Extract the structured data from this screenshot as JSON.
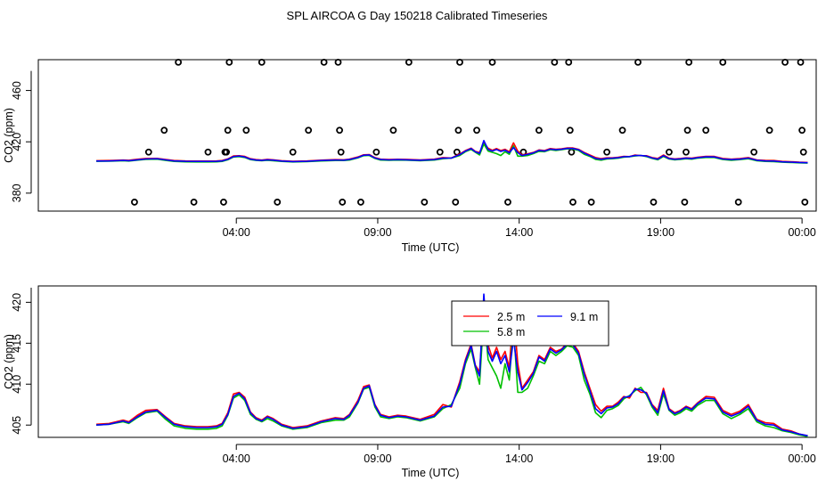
{
  "title": "SPL AIRCOA G  Day 150218  Calibrated Timeseries",
  "chart_data": [
    {
      "type": "scatter+line",
      "xlabel": "Time (UTC)",
      "ylabel": "CO2 (ppm)",
      "xlim": [
        -3.0,
        24.5
      ],
      "ylim": [
        366,
        484
      ],
      "x_ticks": [
        {
          "value": 4,
          "label": "04:00"
        },
        {
          "value": 9,
          "label": "09:00"
        },
        {
          "value": 14,
          "label": "14:00"
        },
        {
          "value": 19,
          "label": "19:00"
        },
        {
          "value": 24,
          "label": "00:00"
        }
      ],
      "y_ticks": [
        {
          "value": 380,
          "label": "380"
        },
        {
          "value": 420,
          "label": "420"
        },
        {
          "value": 460,
          "label": "460"
        }
      ],
      "calibration_points": [
        {
          "x": 0.4,
          "y": 373
        },
        {
          "x": 0.9,
          "y": 412
        },
        {
          "x": 1.45,
          "y": 429
        },
        {
          "x": 1.95,
          "y": 482
        },
        {
          "x": 2.5,
          "y": 373
        },
        {
          "x": 3.0,
          "y": 412
        },
        {
          "x": 3.55,
          "y": 373
        },
        {
          "x": 3.6,
          "y": 412
        },
        {
          "x": 3.65,
          "y": 412
        },
        {
          "x": 3.7,
          "y": 429
        },
        {
          "x": 3.75,
          "y": 482
        },
        {
          "x": 4.35,
          "y": 429
        },
        {
          "x": 4.9,
          "y": 482
        },
        {
          "x": 5.45,
          "y": 373
        },
        {
          "x": 6.0,
          "y": 412
        },
        {
          "x": 6.55,
          "y": 429
        },
        {
          "x": 7.1,
          "y": 482
        },
        {
          "x": 7.6,
          "y": 482
        },
        {
          "x": 7.65,
          "y": 429
        },
        {
          "x": 7.7,
          "y": 412
        },
        {
          "x": 7.75,
          "y": 373
        },
        {
          "x": 8.4,
          "y": 373
        },
        {
          "x": 8.95,
          "y": 412
        },
        {
          "x": 9.55,
          "y": 429
        },
        {
          "x": 10.1,
          "y": 482
        },
        {
          "x": 10.65,
          "y": 373
        },
        {
          "x": 11.2,
          "y": 412
        },
        {
          "x": 11.75,
          "y": 373
        },
        {
          "x": 11.8,
          "y": 412
        },
        {
          "x": 11.85,
          "y": 429
        },
        {
          "x": 11.9,
          "y": 482
        },
        {
          "x": 12.5,
          "y": 429
        },
        {
          "x": 13.05,
          "y": 482
        },
        {
          "x": 13.6,
          "y": 373
        },
        {
          "x": 14.15,
          "y": 412
        },
        {
          "x": 14.7,
          "y": 429
        },
        {
          "x": 15.25,
          "y": 482
        },
        {
          "x": 15.75,
          "y": 482
        },
        {
          "x": 15.8,
          "y": 429
        },
        {
          "x": 15.85,
          "y": 412
        },
        {
          "x": 15.9,
          "y": 373
        },
        {
          "x": 16.55,
          "y": 373
        },
        {
          "x": 17.1,
          "y": 412
        },
        {
          "x": 17.65,
          "y": 429
        },
        {
          "x": 18.2,
          "y": 482
        },
        {
          "x": 18.75,
          "y": 373
        },
        {
          "x": 19.3,
          "y": 412
        },
        {
          "x": 19.85,
          "y": 373
        },
        {
          "x": 19.9,
          "y": 412
        },
        {
          "x": 19.95,
          "y": 429
        },
        {
          "x": 20.0,
          "y": 482
        },
        {
          "x": 20.6,
          "y": 429
        },
        {
          "x": 21.2,
          "y": 482
        },
        {
          "x": 21.75,
          "y": 373
        },
        {
          "x": 22.3,
          "y": 412
        },
        {
          "x": 22.85,
          "y": 429
        },
        {
          "x": 23.4,
          "y": 482
        },
        {
          "x": 23.95,
          "y": 482
        },
        {
          "x": 24.0,
          "y": 429
        },
        {
          "x": 24.05,
          "y": 412
        },
        {
          "x": 24.1,
          "y": 373
        }
      ],
      "series": [
        {
          "name": "2.5 m",
          "color": "#ff0000",
          "y_offset": 0.2
        },
        {
          "name": "5.8 m",
          "color": "#00c000",
          "y_offset": -0.2
        },
        {
          "name": "9.1 m",
          "color": "#0000ff",
          "y_offset": 0.0
        }
      ]
    },
    {
      "type": "line",
      "xlabel": "Time (UTC)",
      "ylabel": "CO2 (ppm)",
      "xlim": [
        -3.0,
        24.5
      ],
      "ylim": [
        403.5,
        422.0
      ],
      "x_ticks": [
        {
          "value": 4,
          "label": "04:00"
        },
        {
          "value": 9,
          "label": "09:00"
        },
        {
          "value": 14,
          "label": "14:00"
        },
        {
          "value": 19,
          "label": "19:00"
        },
        {
          "value": 24,
          "label": "00:00"
        }
      ],
      "y_ticks": [
        {
          "value": 405,
          "label": "405"
        },
        {
          "value": 410,
          "label": "410"
        },
        {
          "value": 415,
          "label": "415"
        },
        {
          "value": 420,
          "label": "420"
        }
      ],
      "legend": {
        "position": "top-center",
        "entries": [
          {
            "label": "2.5 m",
            "color": "#ff0000"
          },
          {
            "label": "5.8 m",
            "color": "#00c000"
          },
          {
            "label": "9.1 m",
            "color": "#0000ff"
          }
        ]
      },
      "x": [
        -0.95,
        -0.5,
        0,
        0.2,
        0.5,
        0.8,
        1.2,
        1.5,
        1.8,
        2.2,
        2.6,
        3,
        3.3,
        3.5,
        3.7,
        3.9,
        4.1,
        4.3,
        4.5,
        4.7,
        4.9,
        5.1,
        5.3,
        5.6,
        6,
        6.5,
        7,
        7.5,
        7.8,
        8,
        8.3,
        8.5,
        8.7,
        8.9,
        9.1,
        9.4,
        9.7,
        10,
        10.5,
        11,
        11.3,
        11.6,
        11.9,
        12.1,
        12.3,
        12.45,
        12.6,
        12.75,
        12.9,
        13.05,
        13.2,
        13.35,
        13.5,
        13.65,
        13.8,
        13.95,
        14.1,
        14.3,
        14.5,
        14.7,
        14.9,
        15.1,
        15.3,
        15.5,
        15.7,
        15.9,
        16.1,
        16.3,
        16.5,
        16.7,
        16.9,
        17.1,
        17.3,
        17.5,
        17.7,
        17.9,
        18.1,
        18.3,
        18.5,
        18.7,
        18.9,
        19.1,
        19.3,
        19.5,
        19.7,
        19.9,
        20.1,
        20.3,
        20.6,
        20.9,
        21.2,
        21.5,
        21.8,
        22.1,
        22.4,
        22.7,
        23,
        23.3,
        23.6,
        23.9,
        24.2
      ],
      "series": [
        {
          "name": "2.5 m",
          "color": "#ff0000",
          "values": [
            405.1,
            405.2,
            405.6,
            405.4,
            406.2,
            406.8,
            406.9,
            406.0,
            405.2,
            404.9,
            404.8,
            404.8,
            404.9,
            405.2,
            406.5,
            408.8,
            409.0,
            408.4,
            406.6,
            405.9,
            405.6,
            406.1,
            405.8,
            405.1,
            404.7,
            404.9,
            405.5,
            405.9,
            405.8,
            406.3,
            408.0,
            409.7,
            409.9,
            407.5,
            406.3,
            406.0,
            406.2,
            406.1,
            405.7,
            406.3,
            407.5,
            407.2,
            410.3,
            413.0,
            414.9,
            412.3,
            411.5,
            419.0,
            414.8,
            413.2,
            414.5,
            413.0,
            414.0,
            412.0,
            419.0,
            412.5,
            409.5,
            410.5,
            411.5,
            413.5,
            413.0,
            414.5,
            414.0,
            414.3,
            415.0,
            415.0,
            414.0,
            411.5,
            409.5,
            407.5,
            406.7,
            407.3,
            407.3,
            407.8,
            408.5,
            408.3,
            409.5,
            409.0,
            409.0,
            407.5,
            406.8,
            409.5,
            407.0,
            406.5,
            406.8,
            407.3,
            407.0,
            407.7,
            408.5,
            408.4,
            406.8,
            406.3,
            406.7,
            407.5,
            405.7,
            405.3,
            405.2,
            404.5,
            404.3,
            403.9,
            403.7
          ]
        },
        {
          "name": "5.8 m",
          "color": "#00c000",
          "values": [
            405.0,
            405.1,
            405.4,
            405.2,
            405.9,
            406.5,
            406.7,
            405.7,
            404.9,
            404.6,
            404.5,
            404.5,
            404.6,
            404.9,
            406.2,
            408.3,
            408.7,
            408.0,
            406.3,
            405.7,
            405.4,
            405.8,
            405.5,
            404.9,
            404.5,
            404.7,
            405.3,
            405.6,
            405.6,
            406.0,
            407.7,
            409.4,
            409.6,
            407.2,
            406.0,
            405.8,
            406.0,
            405.9,
            405.5,
            406.0,
            407.0,
            407.5,
            409.5,
            412.5,
            414.3,
            412.0,
            410.0,
            418.5,
            413.0,
            412.0,
            411.0,
            409.5,
            412.5,
            410.5,
            417.0,
            409.0,
            409.0,
            409.5,
            411.0,
            412.8,
            412.5,
            414.0,
            413.5,
            414.0,
            414.7,
            414.5,
            413.5,
            410.5,
            408.8,
            406.5,
            405.9,
            406.8,
            407.0,
            407.4,
            408.2,
            408.6,
            409.2,
            409.6,
            408.7,
            407.2,
            406.2,
            408.8,
            406.8,
            406.2,
            406.5,
            407.0,
            406.7,
            407.4,
            408.0,
            408.0,
            406.4,
            405.8,
            406.3,
            407.0,
            405.4,
            404.9,
            404.7,
            404.3,
            404.1,
            403.8,
            403.6
          ]
        },
        {
          "name": "9.1 m",
          "color": "#0000ff",
          "values": [
            405.0,
            405.1,
            405.5,
            405.3,
            406.0,
            406.6,
            406.8,
            405.9,
            405.1,
            404.8,
            404.7,
            404.7,
            404.8,
            405.1,
            406.3,
            408.5,
            408.9,
            408.2,
            406.5,
            405.8,
            405.5,
            406.0,
            405.7,
            405.0,
            404.6,
            404.8,
            405.4,
            405.8,
            405.7,
            406.2,
            407.8,
            409.5,
            409.8,
            407.4,
            406.2,
            405.9,
            406.1,
            406.0,
            405.6,
            406.1,
            407.2,
            407.3,
            410.0,
            412.8,
            414.7,
            412.2,
            411.0,
            421.0,
            414.0,
            412.8,
            414.0,
            412.5,
            413.5,
            411.5,
            415.5,
            411.5,
            409.3,
            410.2,
            411.3,
            413.3,
            412.8,
            414.3,
            413.8,
            414.2,
            414.9,
            414.8,
            413.8,
            411.2,
            409.2,
            407.0,
            406.4,
            407.1,
            407.2,
            407.6,
            408.4,
            408.5,
            409.4,
            409.3,
            408.9,
            407.4,
            406.5,
            409.2,
            406.9,
            406.4,
            406.7,
            407.2,
            406.9,
            407.6,
            408.3,
            408.2,
            406.6,
            406.1,
            406.5,
            407.3,
            405.6,
            405.1,
            405.0,
            404.4,
            404.2,
            403.9,
            403.7
          ]
        }
      ]
    }
  ]
}
